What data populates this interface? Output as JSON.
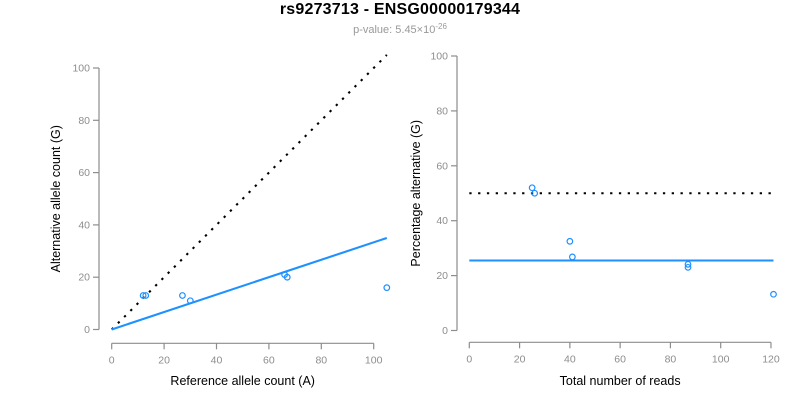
{
  "chart_data": {
    "type": "scatter",
    "title": "rs9273713 - ENSG00000179344",
    "subtitle_prefix": "p-value: 5.45×10",
    "subtitle_exponent": "-26",
    "colors": {
      "accent_blue": "#1E90FF",
      "reference_line_black": "#000000",
      "axis_gray": "#8d8d8d",
      "tick_text_gray": "#8d8d8d",
      "subtitle_gray": "#999999",
      "title_black": "#000000"
    },
    "panels": [
      {
        "name": "allele-counts",
        "xlabel": "Reference allele count (A)",
        "ylabel": "Alternative allele count (G)",
        "xticks": [
          0,
          20,
          40,
          60,
          80,
          100
        ],
        "yticks": [
          0,
          20,
          40,
          60,
          80,
          100
        ],
        "xlim": [
          0,
          105
        ],
        "ylim": [
          0,
          105
        ],
        "grid": false,
        "points": [
          [
            12,
            13
          ],
          [
            13,
            13
          ],
          [
            27,
            13
          ],
          [
            30,
            11
          ],
          [
            66,
            21
          ],
          [
            67,
            20
          ],
          [
            105,
            16
          ]
        ],
        "lines": [
          {
            "name": "identity-line",
            "style": "dotted",
            "color": "#000000",
            "x": [
              0,
              105
            ],
            "y": [
              0,
              105
            ]
          },
          {
            "name": "fit-line",
            "style": "solid",
            "color": "#1E90FF",
            "x": [
              0,
              105
            ],
            "y": [
              0,
              35
            ]
          }
        ]
      },
      {
        "name": "percentage-alternative",
        "xlabel": "Total number of reads",
        "ylabel": "Percentage alternative (G)",
        "xticks": [
          0,
          20,
          40,
          60,
          80,
          100,
          120
        ],
        "yticks": [
          0,
          20,
          40,
          60,
          80,
          100
        ],
        "xlim": [
          0,
          121
        ],
        "ylim": [
          0,
          100
        ],
        "grid": false,
        "points": [
          [
            25,
            52
          ],
          [
            26,
            50
          ],
          [
            40,
            32.5
          ],
          [
            41,
            26.8
          ],
          [
            87,
            24.1
          ],
          [
            87,
            23
          ],
          [
            121,
            13.2
          ]
        ],
        "lines": [
          {
            "name": "fifty-percent-line",
            "style": "dotted",
            "color": "#000000",
            "x": [
              0,
              121
            ],
            "y": [
              50,
              50
            ]
          },
          {
            "name": "mean-percentage-line",
            "style": "solid",
            "color": "#1E90FF",
            "x": [
              0,
              121
            ],
            "y": [
              25.5,
              25.5
            ]
          }
        ]
      }
    ]
  }
}
